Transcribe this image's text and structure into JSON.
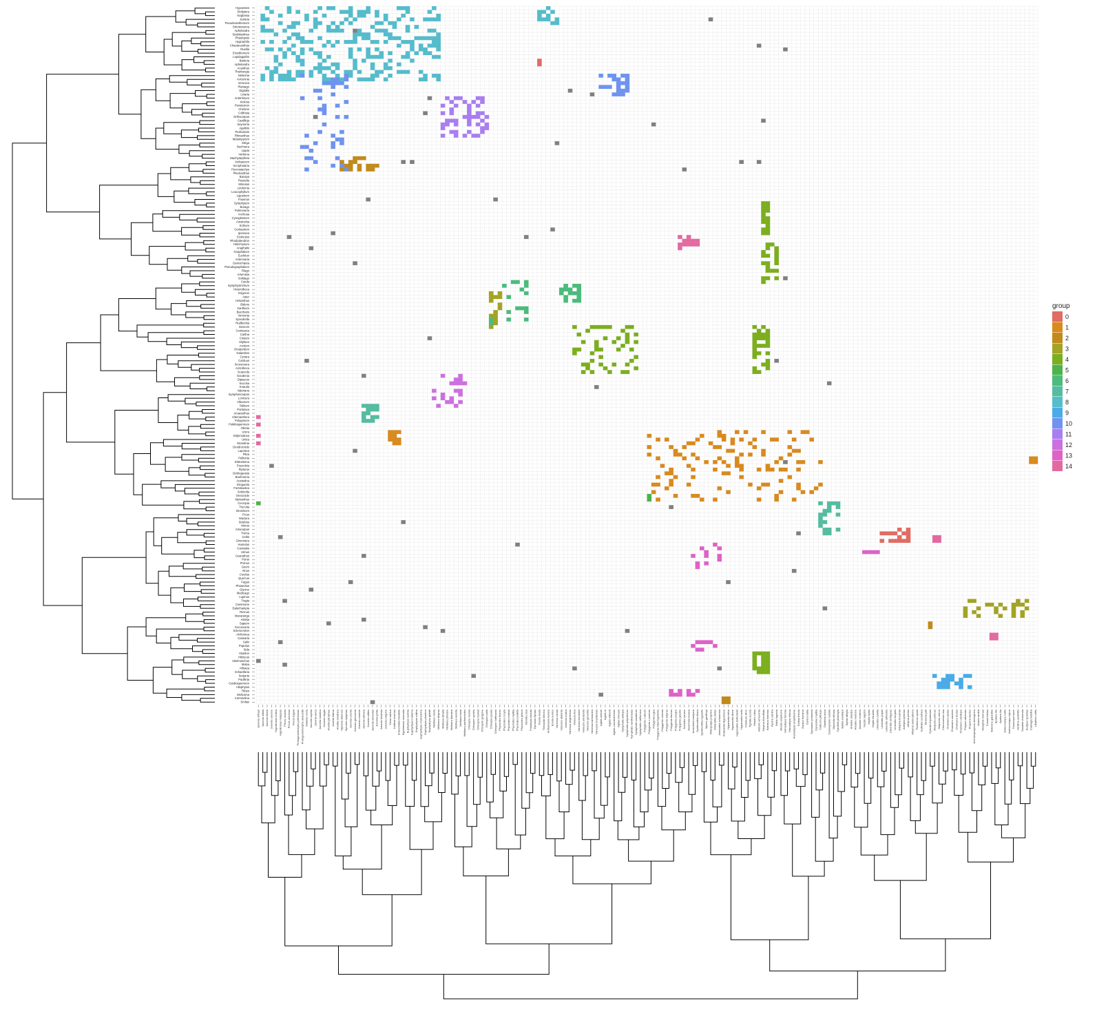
{
  "chart_data": {
    "type": "heatmap",
    "title": "",
    "xlabel": "",
    "ylabel": "",
    "legend": {
      "title": "group",
      "position": "right",
      "entries": [
        "0",
        "1",
        "2",
        "3",
        "4",
        "5",
        "6",
        "7",
        "8",
        "9",
        "10",
        "11",
        "12",
        "13",
        "14"
      ]
    },
    "group_colors": {
      "0": "#e06c64",
      "1": "#d98a1f",
      "2": "#c18a1b",
      "3": "#a3a326",
      "4": "#7cae1f",
      "5": "#4db34a",
      "6": "#4cbb7c",
      "7": "#55bca0",
      "8": "#55bccc",
      "9": "#4aabe8",
      "10": "#6f93ef",
      "11": "#a97ef0",
      "12": "#cc70e0",
      "13": "#de62c7",
      "14": "#e36aa1",
      "NA": "#808080"
    },
    "grid": true,
    "row_dendrogram": true,
    "column_dendrogram": true,
    "rows": [
      "Hypoestes",
      "Dicliptera",
      "Isoglossa",
      "Justicia",
      "Pseuderanthemum",
      "Odontonema",
      "Aphelandra",
      "Strobilanthes",
      "Phaulopsis",
      "Hygrophila",
      "Chaetacanthus",
      "Ruellia",
      "Eranthemum",
      "Lepidagathis",
      "Barleria",
      "Aphelandra",
      "Acanthus",
      "Thunbergia",
      "Nelsonia",
      "Avicennia",
      "Veronica",
      "Plantago",
      "Digitalis",
      "Linaria",
      "Antirrhinum",
      "Kickxia",
      "Penstemon",
      "Chelone",
      "Collinsia",
      "Orthocarpus",
      "Castilleja",
      "Seymeria",
      "Agalinis",
      "Pedicularis",
      "Rhinanthus",
      "Melampyrum",
      "Striga",
      "Buchnera",
      "Lippia",
      "Verbena",
      "Stachytarpheta",
      "Verbascum",
      "Scrophularia",
      "Pycnostachys",
      "Plectranthus",
      "Bacopa",
      "Russelia",
      "Mimulus",
      "Lindernia",
      "Leucophyllum",
      "Ligustrum",
      "Fraxinus",
      "Symphytum",
      "Borago",
      "Pulmonaria",
      "Anchusa",
      "Cynoglossum",
      "Amsinckia",
      "Echium",
      "Centaurium",
      "Ipomoea",
      "Evolvulus",
      "Rhododendron",
      "Helichrysum",
      "Anaphalis",
      "Gnaphalium",
      "Euchiton",
      "Antennaria",
      "Gamochaeta",
      "Pseudognaphalium",
      "Filago",
      "Artemisia",
      "Solidago",
      "Cotula",
      "Symphyotrichum",
      "Heterotheca",
      "Erigeron",
      "Aster",
      "Helianthus",
      "Bidens",
      "Xanthium",
      "Baccharis",
      "Vernonia",
      "Synedrella",
      "Rudbeckia",
      "Senecio",
      "Centaurea",
      "Carlina",
      "Cirsium",
      "Silybum",
      "Arctium",
      "Onopordum",
      "Galactites",
      "Cynara",
      "Carduus",
      "Scorzonera",
      "Arctotheca",
      "Scaevola",
      "Goodenia",
      "Dipsacus",
      "Succisa",
      "Knautia",
      "Valeriana",
      "Symphoricarpos",
      "Lonicera",
      "Viburnum",
      "Talinum",
      "Portulaca",
      "Amaranthus",
      "Alternanthera",
      "Polygonum",
      "Poikilospermum",
      "Obetia",
      "Urera",
      "Didymodoxa",
      "Urtica",
      "Girardinia",
      "Dendrocnide",
      "Laportea",
      "Pilea",
      "Pellionia",
      "Elatostema",
      "Pouzolzia",
      "Pipturus",
      "Debregeasia",
      "Boehmeria",
      "Australina",
      "Droguetia",
      "Forsskaolea",
      "Soleirolia",
      "Oreocnide",
      "Myrianthus",
      "Cecropia",
      "Treculia",
      "Brosimum",
      "Ficus",
      "Maclura",
      "Streblus",
      "Morus",
      "Artocarpus",
      "Trema",
      "Celtis",
      "Gironniera",
      "Humulus",
      "Cannabis",
      "Ulmus",
      "Ceanothus",
      "Pyrus",
      "Prunus",
      "Geum",
      "Alnus",
      "Corylus",
      "Quercus",
      "Fagus",
      "Phaseolus",
      "Glycine",
      "Medicago",
      "Lupinus",
      "Tragia",
      "Cnesmone",
      "Dalechampia",
      "Ricinus",
      "Macaranga",
      "Alstsia",
      "Sapium",
      "Excoecaria",
      "Sclerocroton",
      "Alchornea",
      "Casearia",
      "Salix",
      "Populus",
      "Sida",
      "Abutilon",
      "Hibiscus",
      "Abelmoschus",
      "Malva",
      "Althaea",
      "Schaetfaria",
      "Serjania",
      "Paullinia",
      "Cardiospermum",
      "Allophylus",
      "Ribes",
      "Melicoma",
      "Commelina",
      "Smilax"
    ],
    "columns": [
      "Junonia orithya",
      "Junonia villida",
      "Junonia hierta",
      "Junonia oenone",
      "Hypolimnas bolina",
      "Hypolimnas misippus",
      "Precis octavia",
      "Precis archesia",
      "Precis tugela",
      "Protogoniomorpha parhassus",
      "Protogoniomorpha anacardii",
      "Salamis cacta",
      "Junonia sophia",
      "Junonia terea",
      "Junonia natalica",
      "Junonia stygia",
      "Anartia jatrophae",
      "Anartia fatima",
      "Anartia amathea",
      "Siproeta stelenes",
      "Siproeta epaphus",
      "Junonia coenia",
      "Junonia genoveva",
      "Junonia evarete",
      "Junonia almana",
      "Junonia atlites",
      "Junonia lemonias",
      "Junonia iphita",
      "Junonia hedonia",
      "Junonia erigone",
      "Yoma sabina",
      "Kallima inachus",
      "Doleschallia bisaltide",
      "Hypolimnas anomala",
      "Euphydryas aurinia",
      "Euphydryas maturna",
      "Euphydryas editha",
      "Euphydryas chalcedona",
      "Euphydryas phaeton",
      "Euphydryas gillettii",
      "Melitaea cinxia",
      "Melitaea didyma",
      "Melitaea athalia",
      "Melitaea phoebe",
      "Melitaea diamina",
      "Melitaea aurelia",
      "Melitaea trivia",
      "Melitaea parthenoides",
      "Chlosyne lacinia",
      "Chlosyne nycteis",
      "Chlosyne harrisii",
      "Chlosyne gorgone",
      "Chlosyne palla",
      "Chlosyne janais",
      "Chlosyne hoffmanni",
      "Phyciodes tharos",
      "Phyciodes cocyta",
      "Phyciodes batesii",
      "Phyciodes mylitta",
      "Phyciodes pallida",
      "Phyciodes phaon",
      "Microtia elva",
      "Poladryas minuta",
      "Dymasia dymas",
      "Texola elada",
      "Thessalia theona",
      "Anthanassa texana",
      "Eresia eunice",
      "Vanessa cardui",
      "Vanessa atalanta",
      "Vanessa indica",
      "Vanessa virginiensis",
      "Vanessa itea",
      "Vanessa kershawi",
      "Vanessa annabella",
      "Vanessa gonerilla",
      "Vanessa tameamea",
      "Vanessa braziliensis",
      "Aglais urticae",
      "Aglais io",
      "Aglais milberti",
      "Aglais caschmirensis",
      "Aglais ichnusa",
      "Nymphalis antiopa",
      "Nymphalis polychloros",
      "Nymphalis xanthomelas",
      "Nymphalis vaualbum",
      "Nymphalis californica",
      "Polygonia c-album",
      "Polygonia c-aureum",
      "Polygonia egea",
      "Polygonia interrogationis",
      "Polygonia comma",
      "Polygonia satyrus",
      "Polygonia faunus",
      "Polygonia progne",
      "Polygonia gracilis",
      "Kaniska canace",
      "Araschnia levana",
      "Araschnia burejana",
      "Symbrenthia lilaea",
      "Symbrenthia hypselis",
      "Mynes geoffroyi",
      "Rhinopalpa polynice",
      "Antanartia delius",
      "Antanartia schaeneia",
      "Antanartia hippomene",
      "Hypanartia lethe",
      "Hypanartia dione",
      "Hypanartia kefersteini",
      "Hypanartia bella",
      "Colobura dirce",
      "Tigridia acesta",
      "Historis odius",
      "Historis acheronta",
      "Smyrna blomfildia",
      "Baeotus baeotus",
      "Pycina zamba",
      "Biblis hyperia",
      "Mestra amymone",
      "Hamadryas feronia",
      "Hamadryas februa",
      "Hamadryas amphinome",
      "Ectima thecla",
      "Eunica monima",
      "Eunica tatila",
      "Dynamine postverta",
      "Dynamine mylitta",
      "Callicore pitheas",
      "Diaethria anna",
      "Catonephele numilia",
      "Myscelia ethusa",
      "Cybdelis phaesyla",
      "Byblia anvatara",
      "Byblia ilithyia",
      "Ariadne ariadne",
      "Ariadne merione",
      "Ariadne enotrea",
      "Neptis sappho",
      "Neptis hylas",
      "Neptis rivularis",
      "Limenitis camilla",
      "Limenitis populi",
      "Limenitis arthemis",
      "Limenitis archippus",
      "Limenitis lorquini",
      "Adelpha bredowii",
      "Adelpha iphiclus",
      "Athyma perius",
      "Athyma selenophora",
      "Parthenos sylvia",
      "Euthalia aconthea",
      "Tanaecia julii",
      "Cyrestis thyodamas",
      "Marpesia petreus",
      "Marpesia chiron",
      "Chersonesia risa",
      "Charaxes jasius",
      "Charaxes varanes",
      "Charaxes brutus",
      "Charaxes candiope",
      "Polyura athamas",
      "Prepona laertes",
      "Archaeoprepona demophon",
      "Anaea andria",
      "Memphis moruus",
      "Consul fabius",
      "Siderone galanthis",
      "Apatura iris",
      "Apatura ilia",
      "Asterocampa celtis",
      "Asterocampa clyton",
      "Doxocopa laure",
      "Hestina assimilis",
      "Sasakia charonda",
      "Euripus nyctelius",
      "Calinaga buddha",
      "Libythea celtis"
    ],
    "cells_note": "Each colored cell marks a recorded host-plant (row) × butterfly (column) association; color = group of the butterfly clade; grey = unassigned."
  }
}
